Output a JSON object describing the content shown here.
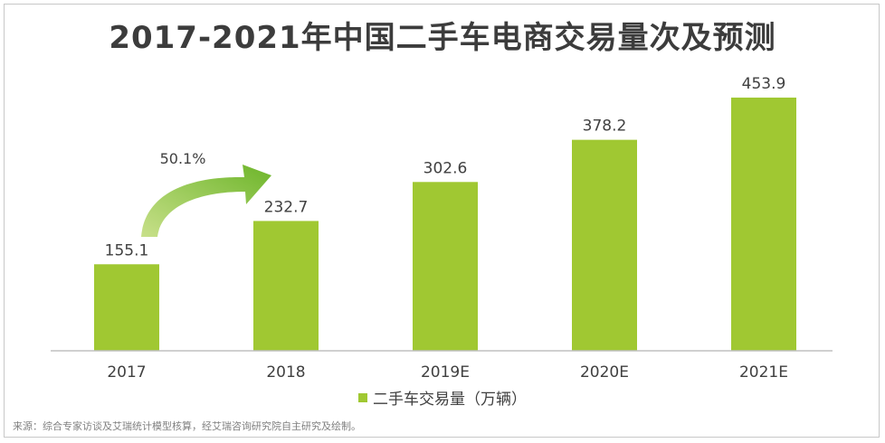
{
  "chart_data": {
    "type": "bar",
    "title": "2017-2021年中国二手车电商交易量次及预测",
    "categories": [
      "2017",
      "2018",
      "2019E",
      "2020E",
      "2021E"
    ],
    "series": [
      {
        "name": "二手车交易量（万辆）",
        "values": [
          155.1,
          232.7,
          302.6,
          378.2,
          453.9
        ],
        "labels": [
          "155.1",
          "232.7",
          "302.6",
          "378.2",
          "453.9"
        ]
      }
    ],
    "ylim": [
      0,
      470
    ],
    "grid": false,
    "legend": "bottom-center",
    "annotations": [
      {
        "text": "50.1%",
        "from": "2017",
        "to": "2018",
        "kind": "growth-arrow"
      }
    ],
    "source": "来源：综合专家访谈及艾瑞统计模型核算，经艾瑞咨询研究院自主研究及绘制。"
  },
  "colors": {
    "bar": "#a0c832",
    "arrow": "#7bbf2e",
    "axis": "#c0c0c0",
    "text": "#404040"
  }
}
